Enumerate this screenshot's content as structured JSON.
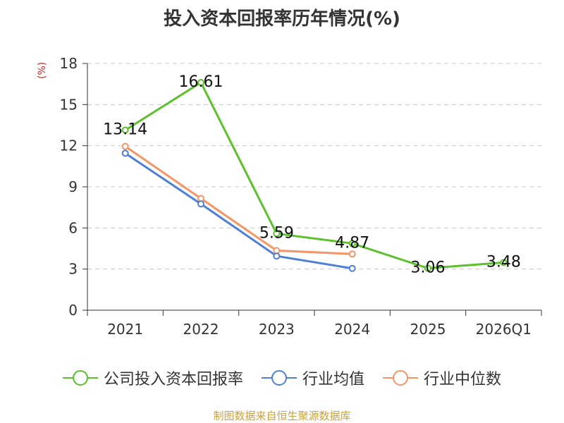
{
  "chart_data": {
    "type": "line",
    "title": "投入资本回报率历年情况(%)",
    "ylabel": "(%)",
    "xlabel": "",
    "categories": [
      "2021",
      "2022",
      "2023",
      "2024",
      "2025",
      "2026Q1"
    ],
    "ylim": [
      0,
      18
    ],
    "yticks": [
      0,
      3,
      6,
      9,
      12,
      15,
      18
    ],
    "grid": true,
    "legend_position": "bottom",
    "series": [
      {
        "name": "公司投入资本回报率",
        "color": "#5ac12a",
        "values": [
          13.14,
          16.61,
          5.59,
          4.87,
          3.06,
          3.48
        ],
        "data_labels": [
          "13.14",
          "16.61",
          "5.59",
          "4.87",
          "3.06",
          "3.48"
        ]
      },
      {
        "name": "行业均值",
        "color": "#4e7fd8",
        "values": [
          11.45,
          7.75,
          3.95,
          3.05,
          null,
          null
        ]
      },
      {
        "name": "行业中位数",
        "color": "#f59566",
        "values": [
          11.95,
          8.15,
          4.35,
          4.1,
          null,
          null
        ]
      }
    ]
  },
  "source": "制图数据来自恒生聚源数据库"
}
